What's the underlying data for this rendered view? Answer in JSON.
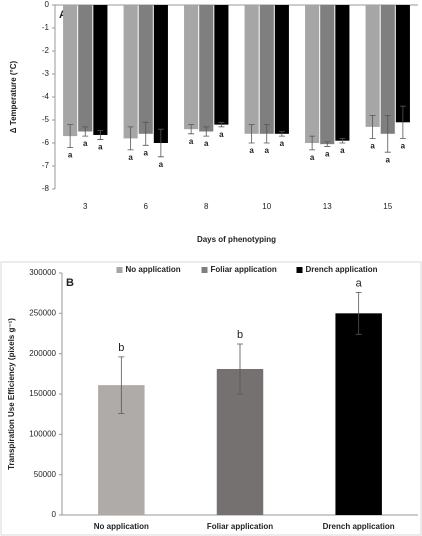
{
  "chart_data": [
    {
      "type": "bar",
      "panel_label": "A",
      "y_label": "Δ Temperature (°C)",
      "x_label": "Days of phenotyping",
      "categories": [
        "3",
        "6",
        "8",
        "10",
        "13",
        "15"
      ],
      "series": [
        {
          "name": "No application",
          "color": "#a6a6a6",
          "values": [
            -5.7,
            -5.8,
            -5.4,
            -5.6,
            -6.0,
            -5.3
          ],
          "errors": [
            0.5,
            0.5,
            0.2,
            0.4,
            0.3,
            0.5
          ],
          "letters": [
            "a",
            "a",
            "a",
            "a",
            "a",
            "a"
          ]
        },
        {
          "name": "Foliar application",
          "color": "#7f7f7f",
          "values": [
            -5.5,
            -5.6,
            -5.5,
            -5.6,
            -6.05,
            -5.6
          ],
          "errors": [
            0.2,
            0.5,
            0.2,
            0.4,
            0.1,
            0.8
          ],
          "letters": [
            "a",
            "a",
            "a",
            "a",
            "a",
            "a"
          ]
        },
        {
          "name": "Drench application",
          "color": "#000000",
          "values": [
            -5.65,
            -6.0,
            -5.2,
            -5.6,
            -5.9,
            -5.1
          ],
          "errors": [
            0.2,
            0.6,
            0.1,
            0.1,
            0.1,
            0.7
          ],
          "letters": [
            "a",
            "a",
            "a",
            "a",
            "a",
            "a"
          ]
        }
      ],
      "ylim": [
        -8,
        0
      ],
      "yticks": [
        0,
        -1,
        -2,
        -3,
        -4,
        -5,
        -6,
        -7,
        -8
      ],
      "grid": false,
      "legend": "bottom"
    },
    {
      "type": "bar",
      "panel_label": "B",
      "y_label": "Transpiration Use Efficiency (pixels g⁻¹)",
      "categories": [
        "No application",
        "Foliar application",
        "Drench application"
      ],
      "series": [
        {
          "colors": [
            "#afaba9",
            "#767171",
            "#000000"
          ],
          "values": [
            161000,
            181000,
            250000
          ],
          "errors": [
            35000,
            31000,
            26000
          ],
          "letters": [
            "b",
            "b",
            "a"
          ]
        }
      ],
      "ylim": [
        0,
        300000
      ],
      "yticks": [
        0,
        50000,
        100000,
        150000,
        200000,
        250000,
        300000
      ],
      "grid": false
    }
  ]
}
